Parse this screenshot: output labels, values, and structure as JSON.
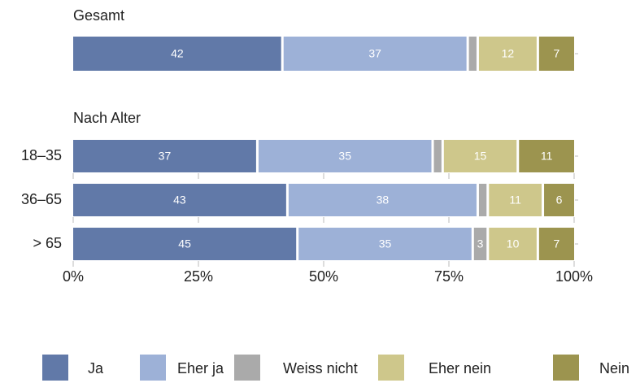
{
  "chart_data": [
    {
      "type": "stacked-bar",
      "title": "Gesamt",
      "categories": [
        null
      ],
      "series": [
        {
          "values": [
            42
          ],
          "value_labels": [
            "42"
          ]
        },
        {
          "values": [
            37
          ],
          "value_labels": [
            "37"
          ]
        },
        {
          "values": [
            2
          ],
          "value_labels": [
            null
          ]
        },
        {
          "values": [
            12
          ],
          "value_labels": [
            "12"
          ]
        },
        {
          "values": [
            7
          ],
          "value_labels": [
            "7"
          ]
        }
      ]
    },
    {
      "type": "stacked-bar",
      "title": "Nach Alter",
      "categories": [
        "18–35",
        "36–65",
        "> 65"
      ],
      "series": [
        {
          "name": "Ja",
          "color": "#6179a8",
          "values": [
            37,
            43,
            45
          ],
          "value_labels": [
            "37",
            "43",
            "45"
          ]
        },
        {
          "name": "Eher ja",
          "color": "#9db1d7",
          "values": [
            35,
            38,
            35
          ],
          "value_labels": [
            "35",
            "38",
            "35"
          ]
        },
        {
          "name": "Weiss nicht",
          "color": "#aaaaaa",
          "values": [
            2,
            2,
            3
          ],
          "value_labels": [
            null,
            null,
            "3"
          ]
        },
        {
          "name": "Eher nein",
          "color": "#cec78b",
          "values": [
            15,
            11,
            10
          ],
          "value_labels": [
            "15",
            "11",
            "10"
          ]
        },
        {
          "name": "Nein",
          "color": "#9c944f",
          "values": [
            11,
            6,
            7
          ],
          "value_labels": [
            "11",
            "6",
            "7"
          ]
        }
      ],
      "xlim": [
        0,
        100
      ],
      "xticks": [
        {
          "value": 0,
          "label": "0%"
        },
        {
          "value": 25,
          "label": "25%"
        },
        {
          "value": 50,
          "label": "50%"
        },
        {
          "value": 75,
          "label": "75%"
        },
        {
          "value": 100,
          "label": "100%"
        }
      ]
    }
  ]
}
